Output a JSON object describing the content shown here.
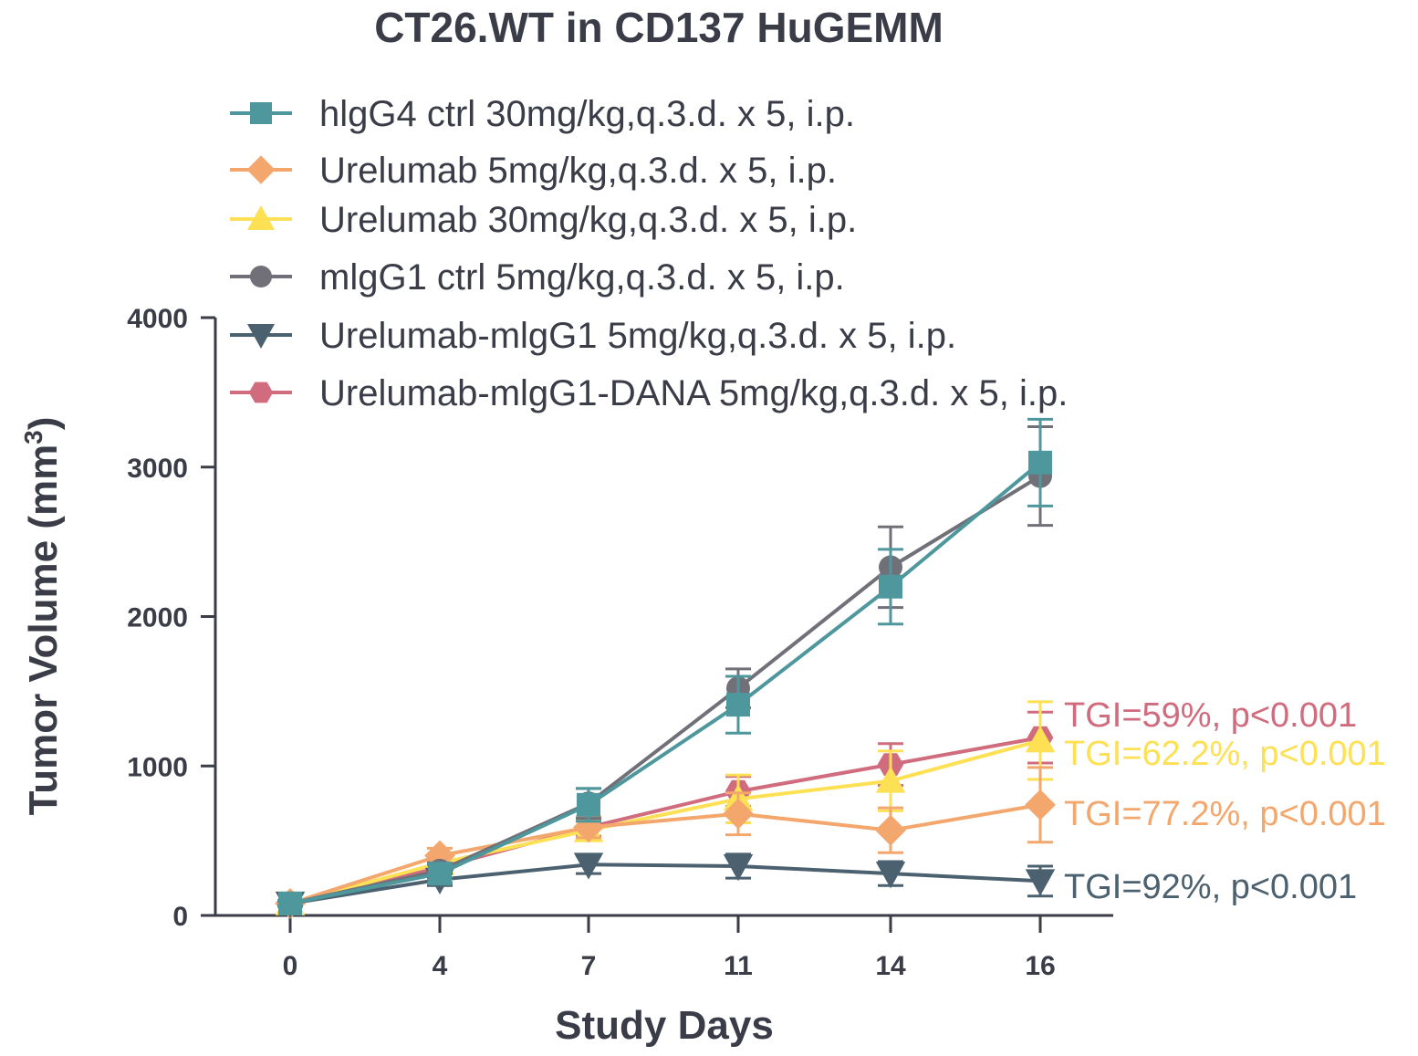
{
  "chart_data": {
    "type": "line",
    "title": "CT26.WT in CD137 HuGEMM",
    "xlabel": "Study Days",
    "ylabel": "Tumor Volume (mm",
    "ylabel_sup": "3",
    "ylabel_close": ")",
    "x": [
      0,
      4,
      7,
      11,
      14,
      16
    ],
    "x_tick_labels": [
      "0",
      "4",
      "7",
      "11",
      "14",
      "16"
    ],
    "y_ticks": [
      0,
      1000,
      2000,
      3000,
      4000
    ],
    "y_tick_labels": [
      "0",
      "1000",
      "2000",
      "3000",
      "4000"
    ],
    "ylim": [
      0,
      4000
    ],
    "legend_position": "top",
    "series": [
      {
        "name": "hIgG4 ctrl 30mg/kg,q.3.d. x 5, i.p.",
        "label": "hlgG4 ctrl 30mg/kg,q.3.d. x 5, i.p.",
        "color": "#4e979d",
        "marker": "square",
        "values": [
          80,
          280,
          740,
          1410,
          2200,
          3030
        ],
        "errors": [
          20,
          60,
          110,
          190,
          250,
          290
        ]
      },
      {
        "name": "Urelumab 5mg/kg,q.3.d. x 5, i.p.",
        "label": "Urelumab 5mg/kg,q.3.d. x 5, i.p.",
        "color": "#f4a76d",
        "marker": "diamond",
        "values": [
          80,
          400,
          590,
          680,
          570,
          740
        ],
        "errors": [
          20,
          50,
          70,
          140,
          150,
          250
        ]
      },
      {
        "name": "Urelumab 30mg/kg,q.3.d. x 5, i.p.",
        "label": "Urelumab 30mg/kg,q.3.d. x 5, i.p.",
        "color": "#fde054",
        "marker": "triangle-up",
        "values": [
          80,
          350,
          570,
          780,
          900,
          1170
        ],
        "errors": [
          20,
          40,
          70,
          160,
          200,
          260
        ]
      },
      {
        "name": "mIgG1 ctrl 5mg/kg,q.3.d. x 5, i.p.",
        "label": "mlgG1 ctrl 5mg/kg,q.3.d. x 5, i.p.",
        "color": "#717079",
        "marker": "circle",
        "values": [
          80,
          300,
          750,
          1520,
          2330,
          2940
        ],
        "errors": [
          20,
          50,
          100,
          130,
          270,
          330
        ]
      },
      {
        "name": "Urelumab-mIgG1 5mg/kg,q.3.d. x 5, i.p.",
        "label": "Urelumab-mlgG1 5mg/kg,q.3.d. x 5, i.p.",
        "color": "#4c6170",
        "marker": "triangle-down",
        "values": [
          80,
          240,
          340,
          330,
          280,
          230
        ],
        "errors": [
          15,
          40,
          60,
          80,
          80,
          100
        ]
      },
      {
        "name": "Urelumab-mIgG1-DANA 5mg/kg,q.3.d. x 5, i.p.",
        "label": "Urelumab-mlgG1-DANA 5mg/kg,q.3.d. x 5, i.p.",
        "color": "#d06c7e",
        "marker": "hexagon",
        "values": [
          80,
          320,
          590,
          830,
          1010,
          1190
        ],
        "errors": [
          20,
          40,
          60,
          100,
          140,
          170
        ]
      }
    ],
    "annotations": [
      {
        "text": "TGI=59%, p<0.001",
        "color": "#d06c7e"
      },
      {
        "text": "TGI=62.2%, p<0.001",
        "color": "#fde054"
      },
      {
        "text": "TGI=77.2%, p<0.001",
        "color": "#f4a76d"
      },
      {
        "text": "TGI=92%, p<0.001",
        "color": "#4c6170"
      }
    ]
  }
}
